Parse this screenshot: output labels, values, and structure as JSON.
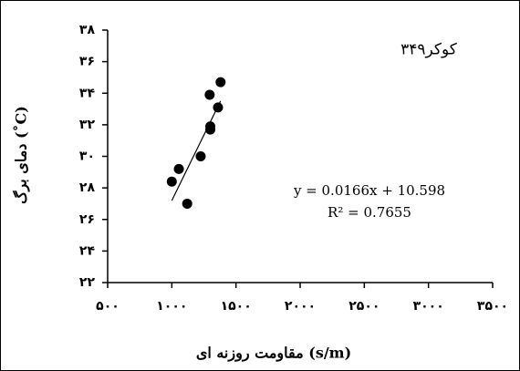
{
  "chart_data": {
    "type": "scatter",
    "title": "کوکر۳۴۹",
    "x_label": "مقاومت روزنه ای (s/m)",
    "y_label": "دمای برگ  (˚C)",
    "x": [
      1000,
      1055,
      1120,
      1225,
      1300,
      1300,
      1295,
      1360,
      1380
    ],
    "values": [
      28.4,
      29.2,
      27.0,
      30.0,
      31.7,
      31.9,
      33.9,
      33.1,
      34.7
    ],
    "color": "#000000",
    "trendline": {
      "slope": 0.0166,
      "intercept": 10.598,
      "xlim": [
        1000,
        1380
      ]
    },
    "annotations": [
      "y = 0.0166x + 10.598",
      "R² = 0.7655"
    ],
    "xlim": [
      500,
      3500
    ],
    "xticks": [
      {
        "value": 500,
        "label": "۵۰۰"
      },
      {
        "value": 1000,
        "label": "۱۰۰۰"
      },
      {
        "value": 1500,
        "label": "۱۵۰۰"
      },
      {
        "value": 2000,
        "label": "۲۰۰۰"
      },
      {
        "value": 2500,
        "label": "۲۵۰۰"
      },
      {
        "value": 3000,
        "label": "۳۰۰۰"
      },
      {
        "value": 3500,
        "label": "۳۵۰۰"
      }
    ],
    "ylim": [
      22,
      38
    ],
    "yticks": [
      {
        "value": 22,
        "label": "۲۲"
      },
      {
        "value": 24,
        "label": "۲۴"
      },
      {
        "value": 26,
        "label": "۲۶"
      },
      {
        "value": 28,
        "label": "۲۸"
      },
      {
        "value": 30,
        "label": "۳۰"
      },
      {
        "value": 32,
        "label": "۳۲"
      },
      {
        "value": 34,
        "label": "۳۴"
      },
      {
        "value": 36,
        "label": "۳۶"
      },
      {
        "value": 38,
        "label": "۳۸"
      }
    ],
    "grid": false
  }
}
